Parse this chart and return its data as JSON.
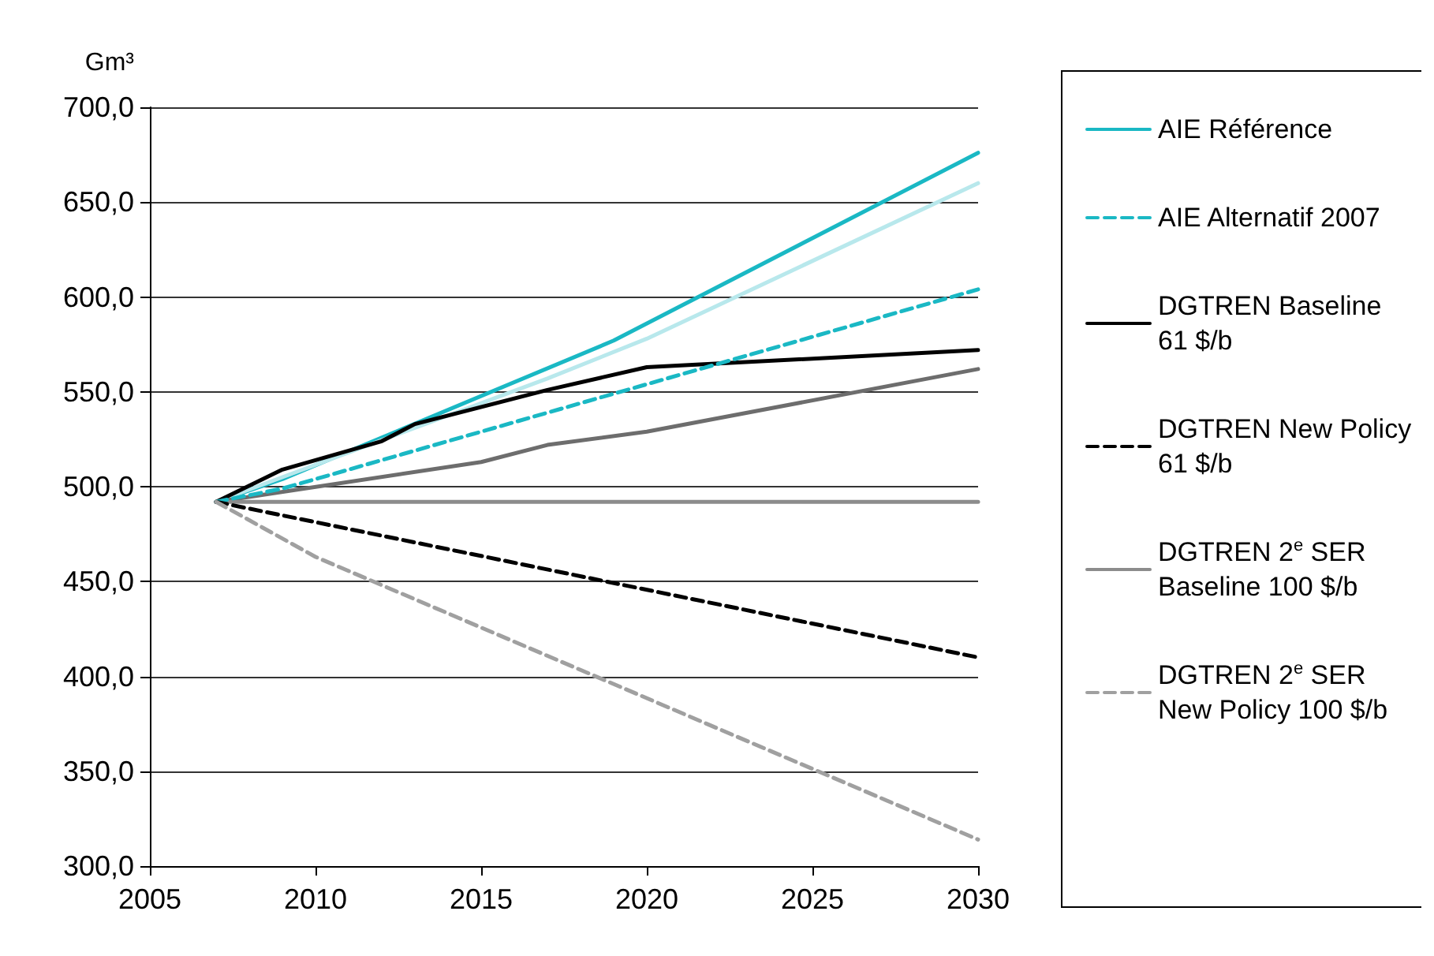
{
  "chart_data": {
    "type": "line",
    "ylabel": "Gm³",
    "xlim": [
      2005,
      2030
    ],
    "xticks": [
      2005,
      2010,
      2015,
      2020,
      2025,
      2030
    ],
    "ylim": [
      300,
      700
    ],
    "yticks": [
      {
        "value": 300,
        "label": "300,0"
      },
      {
        "value": 350,
        "label": "350,0"
      },
      {
        "value": 400,
        "label": "400,0"
      },
      {
        "value": 450,
        "label": "450,0"
      },
      {
        "value": 500,
        "label": "500,0"
      },
      {
        "value": 550,
        "label": "550,0"
      },
      {
        "value": 600,
        "label": "600,0"
      },
      {
        "value": 650,
        "label": "650,0"
      },
      {
        "value": 700,
        "label": "700,0"
      }
    ],
    "grid": "y",
    "legend": "right",
    "series": [
      {
        "name": "AIE Référence",
        "color": "#1ab8c4",
        "line_style": "solid",
        "x": [
          2007,
          2009,
          2019,
          2030
        ],
        "values": [
          492,
          504,
          577,
          676
        ]
      },
      {
        "name": "AIE Alternatif 2007",
        "color": "#1ab8c4",
        "line_style": "dashed",
        "x": [
          2007,
          2009,
          2028,
          2030
        ],
        "values": [
          492,
          499,
          594,
          604
        ]
      },
      {
        "color": "#b8e8ec",
        "line_style": "solid",
        "x": [
          2007,
          2017,
          2020,
          2030
        ],
        "values": [
          492,
          557,
          578,
          660
        ]
      },
      {
        "color": "#6d6d6d",
        "line_style": "solid",
        "x": [
          2007,
          2015,
          2017,
          2020,
          2030
        ],
        "values": [
          492,
          513,
          522,
          529,
          562
        ]
      },
      {
        "name": "DGTREN Baseline\n61 $/b",
        "color": "#000000",
        "line_style": "solid",
        "x": [
          2007,
          2009,
          2012,
          2013,
          2017,
          2020,
          2030
        ],
        "values": [
          492,
          509,
          524,
          533,
          551,
          563,
          572
        ]
      },
      {
        "name": "DGTREN New Policy\n61 $/b",
        "color": "#000000",
        "line_style": "dashed",
        "x": [
          2007,
          2030
        ],
        "values": [
          492,
          410
        ]
      },
      {
        "name": "DGTREN 2$^{e}$ SER\nBaseline 100 $/b",
        "color": "#8c8c8c",
        "line_style": "solid",
        "x": [
          2007,
          2030
        ],
        "values": [
          492,
          492
        ]
      },
      {
        "name": "DGTREN 2$^{e}$ SER\nNew Policy 100 $/b",
        "color": "#a0a0a0",
        "line_style": "dashed",
        "x": [
          2007,
          2010,
          2030
        ],
        "values": [
          492,
          463,
          314
        ]
      }
    ]
  }
}
